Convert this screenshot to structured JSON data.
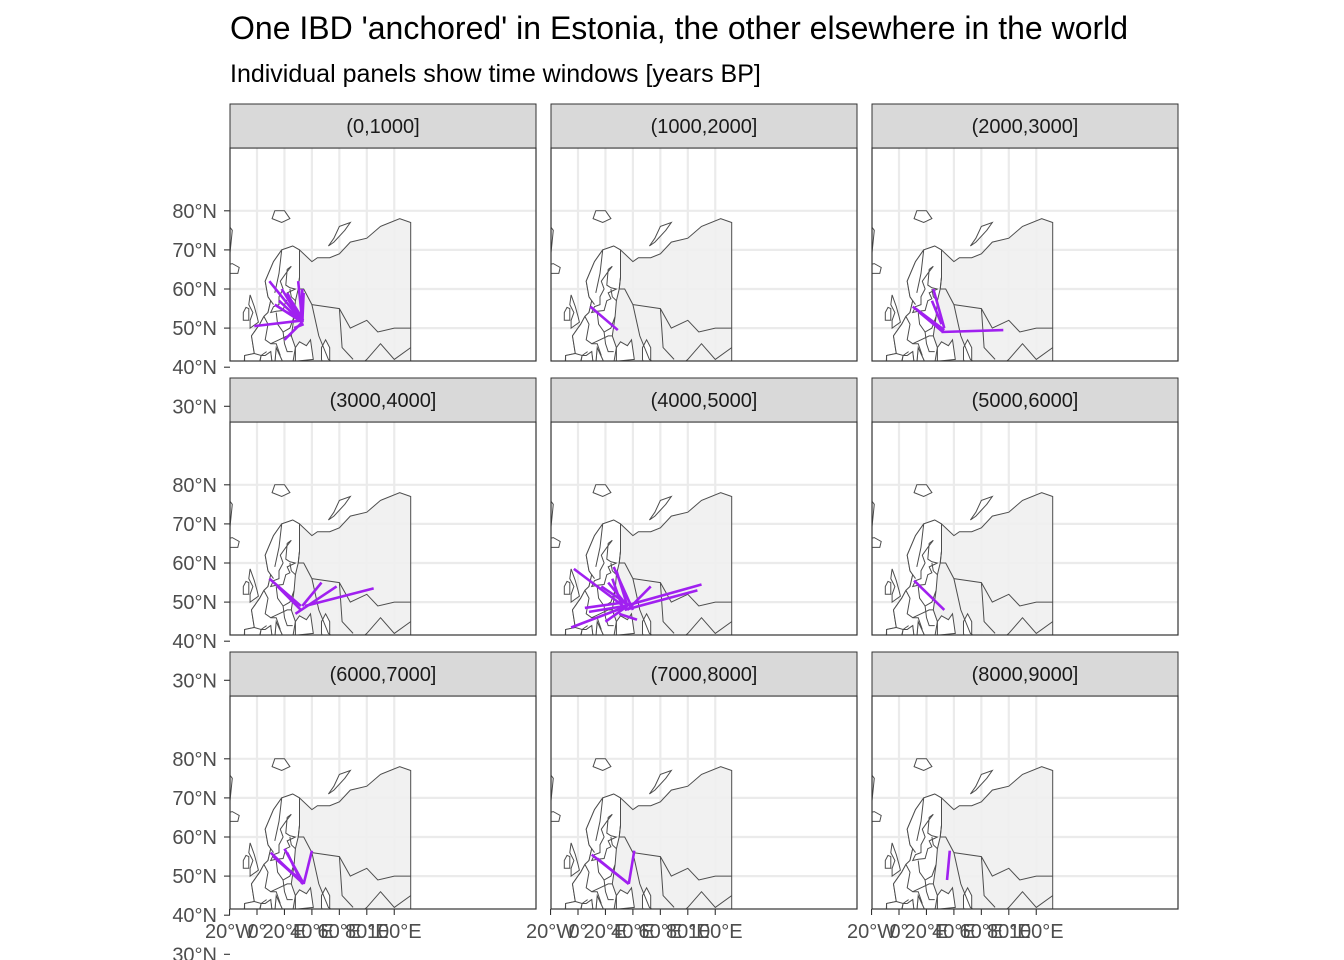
{
  "chart_data": {
    "type": "line",
    "title": "One IBD 'anchored' in Estonia, the other elsewhere in the world",
    "subtitle": "Individual panels show time windows [years BP]",
    "x_ticks": [
      "20°W",
      "0°",
      "20°E",
      "40°E",
      "60°E",
      "80°E",
      "100°E"
    ],
    "y_ticks": [
      "30°N",
      "40°N",
      "50°N",
      "60°N",
      "70°N",
      "80°N"
    ],
    "x_tick_values": [
      -20,
      0,
      20,
      40,
      60,
      80,
      100
    ],
    "y_tick_values": [
      30,
      40,
      50,
      60,
      70,
      80
    ],
    "xlim": [
      -31,
      112
    ],
    "ylim": [
      28,
      81
    ],
    "grid": true,
    "colors": {
      "segment": "#a020f0",
      "land_outside_europe": "#efefef",
      "land_europe": "#ffffff",
      "strip_fill": "#d9d9d9",
      "grid": "#ebebeb"
    },
    "panels": [
      {
        "label": "(0,1000]",
        "segments": [
          [
            [
              -2,
              50.5
            ],
            [
              34,
              52
            ]
          ],
          [
            [
              9,
              62
            ],
            [
              32,
              52
            ]
          ],
          [
            [
              18,
              60
            ],
            [
              33,
              51.5
            ]
          ],
          [
            [
              22,
              59
            ],
            [
              33,
              51.5
            ]
          ],
          [
            [
              16,
              57
            ],
            [
              33,
              51.5
            ]
          ],
          [
            [
              13,
              56
            ],
            [
              33,
              51.5
            ]
          ],
          [
            [
              30,
              62
            ],
            [
              33,
              51.5
            ]
          ],
          [
            [
              33,
              60
            ],
            [
              33,
              51.5
            ]
          ],
          [
            [
              34,
              59
            ],
            [
              33,
              51.5
            ]
          ],
          [
            [
              25,
              57
            ],
            [
              33,
              52.5
            ]
          ],
          [
            [
              27,
              50
            ],
            [
              34,
              51
            ]
          ],
          [
            [
              20,
              47
            ],
            [
              33,
              51.5
            ]
          ],
          [
            [
              22,
              54
            ],
            [
              34,
              52
            ]
          ]
        ]
      },
      {
        "label": "(1000,2000]",
        "segments": [
          [
            [
              9,
              55.5
            ],
            [
              29,
              49.5
            ]
          ]
        ]
      },
      {
        "label": "(2000,3000]",
        "segments": [
          [
            [
              10,
              55.5
            ],
            [
              32,
              49.5
            ]
          ],
          [
            [
              12,
              55
            ],
            [
              33,
              49.5
            ]
          ],
          [
            [
              15,
              54
            ],
            [
              32,
              49
            ]
          ],
          [
            [
              31,
              49
            ],
            [
              76,
              49.5
            ]
          ],
          [
            [
              25,
              60
            ],
            [
              33,
              50
            ]
          ],
          [
            [
              24,
              57
            ],
            [
              31,
              51
            ]
          ]
        ]
      },
      {
        "label": "(3000,4000]",
        "segments": [
          [
            [
              9,
              56
            ],
            [
              32,
              49
            ]
          ],
          [
            [
              15,
              54
            ],
            [
              32,
              48
            ]
          ],
          [
            [
              28,
              47
            ],
            [
              58,
              54
            ]
          ],
          [
            [
              33,
              49
            ],
            [
              47,
              55
            ]
          ],
          [
            [
              35,
              49
            ],
            [
              85,
              53.5
            ]
          ]
        ]
      },
      {
        "label": "(4000,5000]",
        "segments": [
          [
            [
              -3,
              58.5
            ],
            [
              33,
              49
            ]
          ],
          [
            [
              17,
              54
            ],
            [
              38,
              49
            ]
          ],
          [
            [
              22,
              55
            ],
            [
              36,
              49
            ]
          ],
          [
            [
              26,
              59
            ],
            [
              40,
              48
            ]
          ],
          [
            [
              28,
              58
            ],
            [
              36,
              49
            ]
          ],
          [
            [
              25,
              56
            ],
            [
              33,
              48
            ]
          ],
          [
            [
              -5,
              43.5
            ],
            [
              36,
              49
            ]
          ],
          [
            [
              8,
              47.5
            ],
            [
              34,
              49
            ]
          ],
          [
            [
              20,
              45
            ],
            [
              36,
              49
            ]
          ],
          [
            [
              34,
              49
            ],
            [
              90,
              54.5
            ]
          ],
          [
            [
              34,
              48
            ],
            [
              87,
              53
            ]
          ],
          [
            [
              36,
              48
            ],
            [
              53,
              54
            ]
          ],
          [
            [
              30,
              47
            ],
            [
              43,
              45.5
            ]
          ],
          [
            [
              5,
              48.5
            ],
            [
              35,
              50
            ]
          ]
        ]
      },
      {
        "label": "(5000,6000]",
        "segments": [
          [
            [
              11,
              55.5
            ],
            [
              33,
              48
            ]
          ]
        ]
      },
      {
        "label": "(6000,7000]",
        "segments": [
          [
            [
              10,
              56
            ],
            [
              34,
              48
            ]
          ],
          [
            [
              12,
              55
            ],
            [
              34,
              48
            ]
          ],
          [
            [
              20,
              57
            ],
            [
              34,
              48
            ]
          ],
          [
            [
              22,
              56
            ],
            [
              33,
              48
            ]
          ],
          [
            [
              26,
              53
            ],
            [
              34,
              48
            ]
          ],
          [
            [
              34,
              48
            ],
            [
              40,
              56.5
            ]
          ],
          [
            [
              15,
              54
            ],
            [
              32,
              49
            ]
          ]
        ]
      },
      {
        "label": "(7000,8000]",
        "segments": [
          [
            [
              10,
              55.5
            ],
            [
              37,
              48
            ]
          ],
          [
            [
              14,
              54.5
            ],
            [
              37,
              48
            ]
          ],
          [
            [
              37,
              48
            ],
            [
              41,
              56.5
            ]
          ]
        ]
      },
      {
        "label": "(8000,9000]",
        "segments": [
          [
            [
              37,
              56.5
            ],
            [
              35,
              49
            ]
          ]
        ]
      }
    ]
  }
}
